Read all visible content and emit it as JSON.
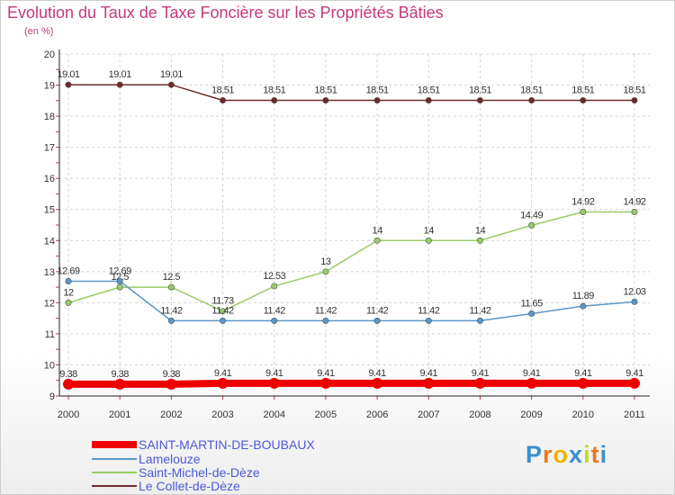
{
  "chart_data": {
    "type": "line",
    "title": "Evolution du Taux de Taxe Foncière sur les Propriétés Bâties",
    "unit_label": "(en %)",
    "categories": [
      "2000",
      "2001",
      "2002",
      "2003",
      "2004",
      "2005",
      "2006",
      "2007",
      "2008",
      "2009",
      "2010",
      "2011"
    ],
    "ylim": [
      9,
      20
    ],
    "yticks": [
      9,
      10,
      11,
      12,
      13,
      14,
      15,
      16,
      17,
      18,
      19,
      20
    ],
    "grid": true,
    "legend_position": "bottom-left",
    "series": [
      {
        "name": "Le Collet-de-Dèze",
        "color": "#6e2a2a",
        "values": [
          19.01,
          19.01,
          19.01,
          18.51,
          18.51,
          18.51,
          18.51,
          18.51,
          18.51,
          18.51,
          18.51,
          18.51
        ],
        "labels": [
          "19.01",
          "19.01",
          "19.01",
          "18.51",
          "18.51",
          "18.51",
          "18.51",
          "18.51",
          "18.51",
          "18.51",
          "18.51",
          "18.51"
        ]
      },
      {
        "name": "Saint-Michel-de-Dèze",
        "color": "#99cc66",
        "values": [
          12,
          12.5,
          12.5,
          11.73,
          12.53,
          13,
          14,
          14,
          14,
          14.49,
          14.92,
          14.92
        ],
        "labels": [
          "12",
          "12.5",
          "12.5",
          "11.73",
          "12.53",
          "13",
          "14",
          "14",
          "14",
          "14.49",
          "14.92",
          "14.92"
        ]
      },
      {
        "name": "Lamelouze",
        "color": "#5a96c8",
        "values": [
          12.69,
          12.69,
          11.42,
          11.42,
          11.42,
          11.42,
          11.42,
          11.42,
          11.42,
          11.65,
          11.89,
          12.03
        ],
        "labels": [
          "12.69",
          "12.69",
          "11.42",
          "11.42",
          "11.42",
          "11.42",
          "11.42",
          "11.42",
          "11.42",
          "11.65",
          "11.89",
          "12.03"
        ]
      },
      {
        "name": "SAINT-MARTIN-DE-BOUBAUX",
        "color": "#ee0000",
        "values": [
          9.38,
          9.38,
          9.38,
          9.41,
          9.41,
          9.41,
          9.41,
          9.41,
          9.41,
          9.41,
          9.41,
          9.41
        ],
        "labels": [
          "9.38",
          "9.38",
          "9.38",
          "9.41",
          "9.41",
          "9.41",
          "9.41",
          "9.41",
          "9.41",
          "9.41",
          "9.41",
          "9.41"
        ]
      }
    ],
    "legend": [
      {
        "name": "SAINT-MARTIN-DE-BOUBAUX",
        "color": "#ee0000",
        "text_color": "#4b5ad6"
      },
      {
        "name": "Lamelouze",
        "color": "#5a96c8",
        "text_color": "#4b5ad6"
      },
      {
        "name": "Saint-Michel-de-Dèze",
        "color": "#99cc66",
        "text_color": "#4b5ad6"
      },
      {
        "name": "Le Collet-de-Dèze",
        "color": "#6e2a2a",
        "text_color": "#4b5ad6"
      }
    ]
  },
  "brand": {
    "logo_text": "Proxiti",
    "letters": [
      "P",
      "r",
      "o",
      "x",
      "i",
      "t",
      "i"
    ],
    "letter_colors": [
      "#3a8fd0",
      "#e87a1e",
      "#f0b400",
      "#3a8fd0",
      "#c6d91f",
      "#e87a1e",
      "#3a8fd0"
    ]
  }
}
